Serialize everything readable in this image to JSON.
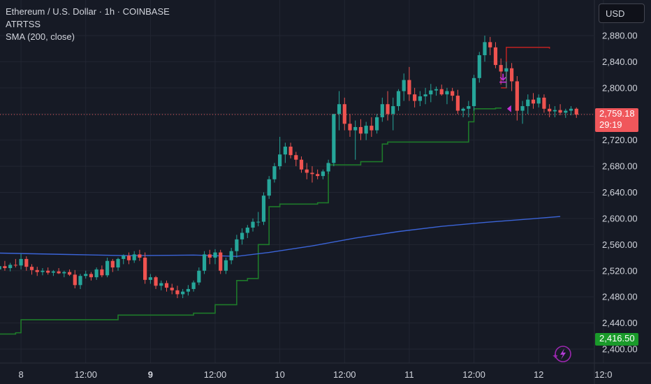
{
  "header": {
    "title": "Ethereum / U.S. Dollar · 1h · COINBASE",
    "indicator_1": "ATRTSS",
    "indicator_2": "SMA (200, close)"
  },
  "currency_button": "USD",
  "last_price": {
    "value": "2,759.18",
    "countdown": "29:19"
  },
  "atr_stop_label": "2,416.50",
  "colors": {
    "background": "#161a25",
    "grid": "#222632",
    "up": "#26a69a",
    "down": "#ef5350",
    "sma": "#3b64d8",
    "atr_stop_long": "#1e7a2a",
    "atr_stop_short": "#b22222",
    "signal": "#c030d0",
    "text": "#d1d4dc"
  },
  "chart_data": {
    "type": "candlestick",
    "symbol": "Ethereum / U.S. Dollar",
    "interval": "1h",
    "exchange": "COINBASE",
    "y_ticks": [
      2400,
      2440,
      2480,
      2520,
      2560,
      2600,
      2640,
      2680,
      2720,
      2760,
      2800,
      2840,
      2880
    ],
    "y_tick_labels": [
      "2,400.00",
      "2,440.00",
      "2,480.00",
      "2,520.00",
      "2,560.00",
      "2,600.00",
      "2,640.00",
      "2,680.00",
      "2,720.00",
      "2,760.00",
      "2,800.00",
      "2,840.00",
      "2,880.00"
    ],
    "ylim": [
      2390,
      2908
    ],
    "x_labels": [
      {
        "label": "8",
        "bold": false,
        "bar": 4
      },
      {
        "label": "12:00",
        "bold": false,
        "bar": 16
      },
      {
        "label": "9",
        "bold": true,
        "bar": 28
      },
      {
        "label": "12:00",
        "bold": false,
        "bar": 40
      },
      {
        "label": "10",
        "bold": false,
        "bar": 52
      },
      {
        "label": "12:00",
        "bold": false,
        "bar": 64
      },
      {
        "label": "11",
        "bold": false,
        "bar": 76
      },
      {
        "label": "12:00",
        "bold": false,
        "bar": 88
      },
      {
        "label": "12",
        "bold": false,
        "bar": 100
      },
      {
        "label": "12:0",
        "bold": false,
        "bar": 112
      }
    ],
    "candles": [
      [
        2522,
        2530,
        2515,
        2527
      ],
      [
        2527,
        2535,
        2520,
        2524
      ],
      [
        2524,
        2532,
        2519,
        2529
      ],
      [
        2529,
        2538,
        2525,
        2528
      ],
      [
        2528,
        2546,
        2522,
        2538
      ],
      [
        2538,
        2542,
        2520,
        2526
      ],
      [
        2526,
        2530,
        2514,
        2521
      ],
      [
        2521,
        2526,
        2512,
        2518
      ],
      [
        2518,
        2524,
        2513,
        2520
      ],
      [
        2520,
        2525,
        2514,
        2517
      ],
      [
        2517,
        2521,
        2512,
        2519
      ],
      [
        2519,
        2524,
        2515,
        2516
      ],
      [
        2516,
        2520,
        2510,
        2518
      ],
      [
        2518,
        2522,
        2512,
        2514
      ],
      [
        2514,
        2521,
        2493,
        2498
      ],
      [
        2498,
        2515,
        2492,
        2512
      ],
      [
        2512,
        2520,
        2508,
        2515
      ],
      [
        2515,
        2518,
        2505,
        2510
      ],
      [
        2510,
        2525,
        2506,
        2522
      ],
      [
        2522,
        2528,
        2510,
        2513
      ],
      [
        2513,
        2540,
        2510,
        2535
      ],
      [
        2535,
        2538,
        2518,
        2525
      ],
      [
        2525,
        2540,
        2520,
        2538
      ],
      [
        2538,
        2545,
        2530,
        2543
      ],
      [
        2543,
        2548,
        2530,
        2536
      ],
      [
        2536,
        2550,
        2532,
        2545
      ],
      [
        2545,
        2552,
        2535,
        2540
      ],
      [
        2540,
        2548,
        2500,
        2506
      ],
      [
        2506,
        2515,
        2500,
        2510
      ],
      [
        2510,
        2512,
        2492,
        2497
      ],
      [
        2497,
        2505,
        2490,
        2501
      ],
      [
        2501,
        2505,
        2488,
        2494
      ],
      [
        2494,
        2500,
        2484,
        2490
      ],
      [
        2490,
        2497,
        2478,
        2484
      ],
      [
        2484,
        2492,
        2478,
        2488
      ],
      [
        2488,
        2498,
        2482,
        2492
      ],
      [
        2492,
        2505,
        2488,
        2502
      ],
      [
        2502,
        2525,
        2498,
        2520
      ],
      [
        2520,
        2550,
        2515,
        2545
      ],
      [
        2545,
        2552,
        2530,
        2540
      ],
      [
        2540,
        2553,
        2530,
        2548
      ],
      [
        2548,
        2552,
        2515,
        2520
      ],
      [
        2520,
        2540,
        2515,
        2536
      ],
      [
        2536,
        2555,
        2530,
        2550
      ],
      [
        2550,
        2575,
        2540,
        2568
      ],
      [
        2568,
        2585,
        2560,
        2578
      ],
      [
        2578,
        2590,
        2570,
        2586
      ],
      [
        2586,
        2600,
        2580,
        2595
      ],
      [
        2595,
        2610,
        2588,
        2595
      ],
      [
        2595,
        2640,
        2590,
        2635
      ],
      [
        2635,
        2665,
        2630,
        2660
      ],
      [
        2660,
        2685,
        2655,
        2680
      ],
      [
        2680,
        2725,
        2675,
        2698
      ],
      [
        2698,
        2716,
        2685,
        2710
      ],
      [
        2710,
        2716,
        2692,
        2697
      ],
      [
        2697,
        2702,
        2680,
        2690
      ],
      [
        2690,
        2695,
        2670,
        2675
      ],
      [
        2675,
        2685,
        2660,
        2670
      ],
      [
        2670,
        2680,
        2655,
        2668
      ],
      [
        2668,
        2675,
        2660,
        2665
      ],
      [
        2665,
        2675,
        2660,
        2672
      ],
      [
        2672,
        2690,
        2668,
        2685
      ],
      [
        2685,
        2760,
        2680,
        2760
      ],
      [
        2760,
        2795,
        2735,
        2775
      ],
      [
        2775,
        2785,
        2735,
        2745
      ],
      [
        2745,
        2760,
        2725,
        2735
      ],
      [
        2735,
        2750,
        2690,
        2740
      ],
      [
        2740,
        2752,
        2720,
        2730
      ],
      [
        2730,
        2748,
        2720,
        2742
      ],
      [
        2742,
        2755,
        2725,
        2735
      ],
      [
        2735,
        2760,
        2730,
        2755
      ],
      [
        2755,
        2785,
        2748,
        2775
      ],
      [
        2775,
        2795,
        2750,
        2760
      ],
      [
        2760,
        2785,
        2735,
        2772
      ],
      [
        2772,
        2798,
        2765,
        2795
      ],
      [
        2795,
        2822,
        2780,
        2812
      ],
      [
        2812,
        2832,
        2780,
        2790
      ],
      [
        2790,
        2800,
        2770,
        2780
      ],
      [
        2780,
        2795,
        2772,
        2787
      ],
      [
        2787,
        2800,
        2775,
        2790
      ],
      [
        2790,
        2806,
        2778,
        2796
      ],
      [
        2796,
        2802,
        2788,
        2798
      ],
      [
        2798,
        2805,
        2788,
        2790
      ],
      [
        2790,
        2800,
        2775,
        2795
      ],
      [
        2795,
        2800,
        2780,
        2788
      ],
      [
        2788,
        2797,
        2760,
        2765
      ],
      [
        2765,
        2770,
        2755,
        2768
      ],
      [
        2768,
        2780,
        2755,
        2772
      ],
      [
        2772,
        2820,
        2765,
        2815
      ],
      [
        2815,
        2855,
        2808,
        2850
      ],
      [
        2850,
        2880,
        2840,
        2870
      ],
      [
        2870,
        2878,
        2850,
        2862
      ],
      [
        2862,
        2870,
        2830,
        2835
      ],
      [
        2835,
        2845,
        2805,
        2825
      ],
      [
        2825,
        2840,
        2800,
        2830
      ],
      [
        2830,
        2838,
        2795,
        2810
      ],
      [
        2810,
        2818,
        2750,
        2765
      ],
      [
        2765,
        2780,
        2745,
        2772
      ],
      [
        2772,
        2790,
        2760,
        2782
      ],
      [
        2782,
        2792,
        2768,
        2776
      ],
      [
        2776,
        2790,
        2770,
        2785
      ],
      [
        2785,
        2790,
        2762,
        2768
      ],
      [
        2768,
        2775,
        2755,
        2764
      ],
      [
        2764,
        2772,
        2755,
        2766
      ],
      [
        2766,
        2775,
        2758,
        2762
      ],
      [
        2762,
        2768,
        2754,
        2765
      ],
      [
        2765,
        2772,
        2758,
        2768
      ],
      [
        2768,
        2770,
        2754,
        2759
      ]
    ],
    "sma_200": [
      [
        0,
        2547
      ],
      [
        12,
        2545
      ],
      [
        24,
        2543
      ],
      [
        36,
        2544
      ],
      [
        44,
        2542
      ],
      [
        50,
        2548
      ],
      [
        58,
        2558
      ],
      [
        66,
        2570
      ],
      [
        74,
        2580
      ],
      [
        82,
        2588
      ],
      [
        90,
        2594
      ],
      [
        98,
        2599
      ],
      [
        104,
        2603
      ]
    ],
    "atr_stop_long": [
      [
        0,
        2423
      ],
      [
        3,
        2425
      ],
      [
        4,
        2445
      ],
      [
        20,
        2445
      ],
      [
        22,
        2452
      ],
      [
        36,
        2455
      ],
      [
        40,
        2468
      ],
      [
        44,
        2505
      ],
      [
        46,
        2508
      ],
      [
        48,
        2560
      ],
      [
        50,
        2618
      ],
      [
        52,
        2622
      ],
      [
        59,
        2624
      ],
      [
        61,
        2682
      ],
      [
        67,
        2687
      ],
      [
        71,
        2714
      ],
      [
        72,
        2717
      ],
      [
        86,
        2717
      ],
      [
        87,
        2748
      ],
      [
        88,
        2768
      ],
      [
        92,
        2769
      ],
      [
        93,
        2768
      ]
    ],
    "atr_stop_short": [
      [
        93,
        2800
      ],
      [
        94,
        2862
      ],
      [
        102,
        2860
      ]
    ],
    "signals": [
      {
        "type": "sell",
        "bar": 93,
        "price": 2812
      },
      {
        "type": "buy",
        "bar": 94,
        "price": 2768
      }
    ],
    "last_price": 2759.18,
    "atr_stop_value": 2416.5
  }
}
